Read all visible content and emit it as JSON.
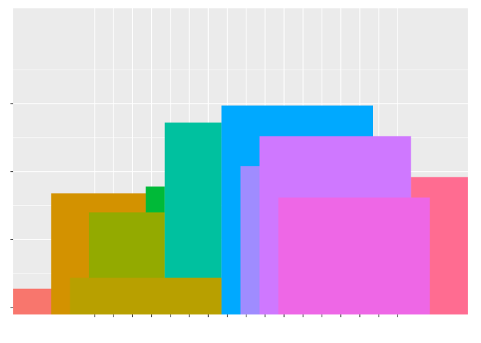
{
  "chart_data": {
    "type": "rect",
    "title": "",
    "xlabel": "",
    "ylabel": "",
    "xlim": [
      -0.3,
      23.7
    ],
    "ylim": [
      -0.025,
      1.1
    ],
    "x_ticks": [
      4,
      5,
      6,
      7,
      8,
      9,
      10,
      11,
      12,
      13,
      14,
      15,
      16,
      17,
      18,
      19,
      20
    ],
    "y_ticks": [
      0,
      0.25,
      0.5,
      0.75
    ],
    "grid": true,
    "legend": "none",
    "panel_background": "#EBEBEB",
    "grid_color": "#FFFFFF",
    "rects": [
      {
        "xmin": 10.7,
        "xmax": 18.7,
        "ymin": -0.025,
        "ymax": 0.065,
        "fill": "#F8766D"
      },
      {
        "xmin": 20.7,
        "xmax": 23.7,
        "ymin": -0.025,
        "ymax": 0.48,
        "fill": "#FF6C91"
      },
      {
        "xmin": -0.3,
        "xmax": 2.7,
        "ymin": -0.025,
        "ymax": 0.07,
        "fill": "#F8766D"
      },
      {
        "xmin": 1.7,
        "xmax": 6.7,
        "ymin": -0.025,
        "ymax": 0.42,
        "fill": "#D39200"
      },
      {
        "xmin": 6.7,
        "xmax": 7.7,
        "ymin": -0.025,
        "ymax": 0.445,
        "fill": "#00BA38"
      },
      {
        "xmin": 3.7,
        "xmax": 7.7,
        "ymin": -0.025,
        "ymax": 0.35,
        "fill": "#93AA00"
      },
      {
        "xmin": 7.7,
        "xmax": 10.7,
        "ymin": -0.025,
        "ymax": 0.68,
        "fill": "#00C19F"
      },
      {
        "xmin": 10.7,
        "xmax": 18.7,
        "ymin": -0.025,
        "ymax": 0.743,
        "fill": "#00A9FF"
      },
      {
        "xmin": 11.7,
        "xmax": 14.7,
        "ymin": -0.025,
        "ymax": 0.52,
        "fill": "#9F8CFF"
      },
      {
        "xmin": 12.7,
        "xmax": 20.7,
        "ymin": -0.025,
        "ymax": 0.63,
        "fill": "#CF78FF"
      },
      {
        "xmin": 2.7,
        "xmax": 10.7,
        "ymin": -0.025,
        "ymax": 0.11,
        "fill": "#B8A000"
      },
      {
        "xmin": 13.7,
        "xmax": 21.7,
        "ymin": -0.025,
        "ymax": 0.405,
        "fill": "#EE67E6"
      }
    ]
  }
}
